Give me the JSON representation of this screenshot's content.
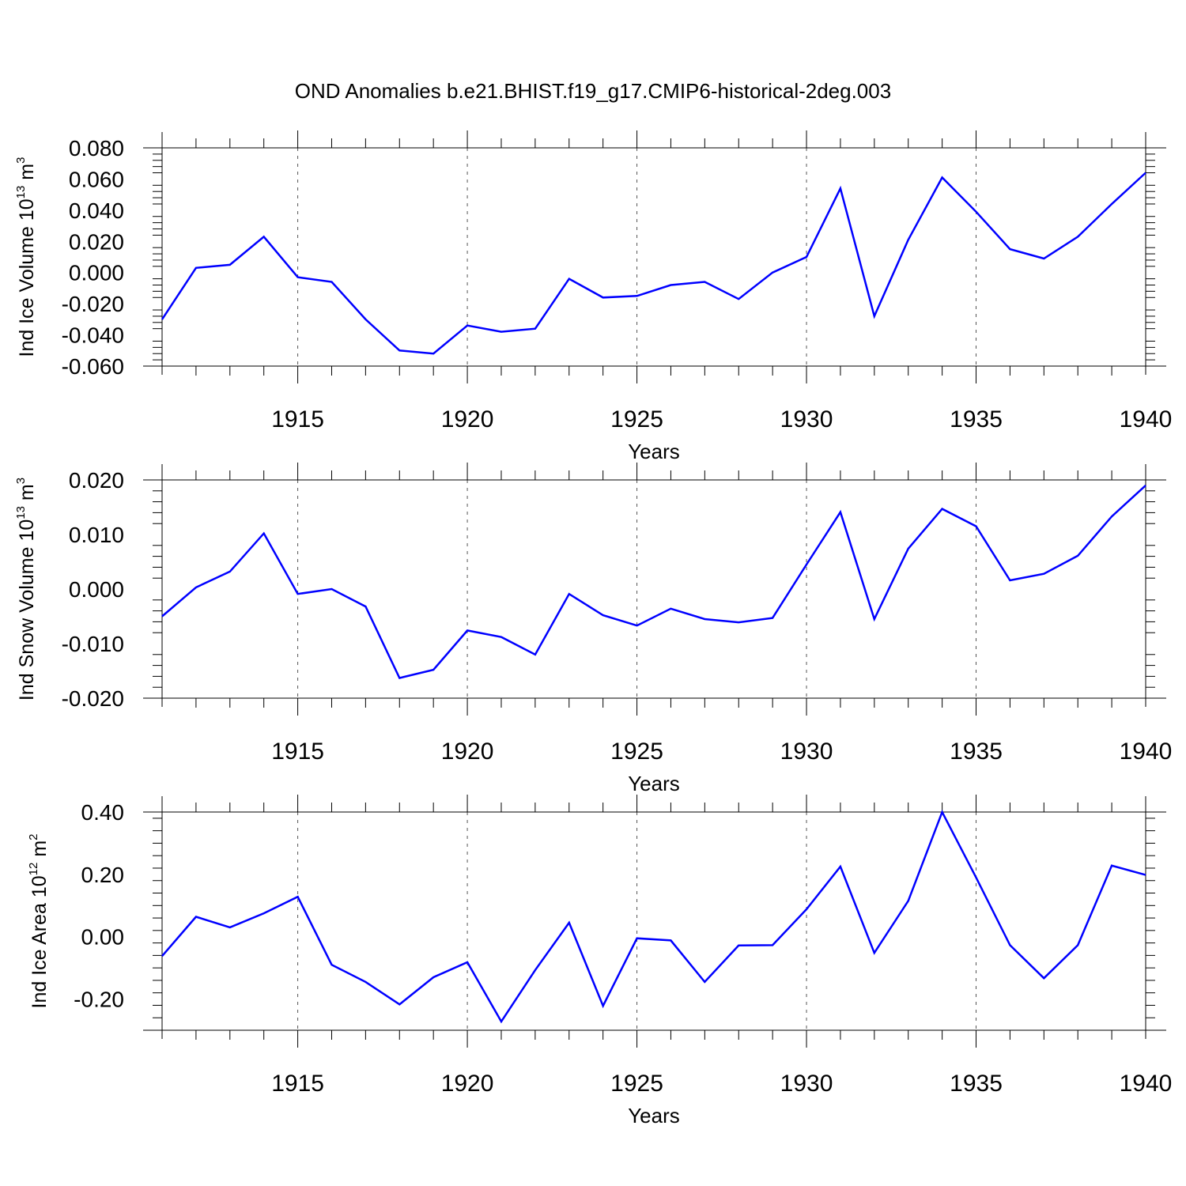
{
  "chart_data": {
    "title": "OND Anomalies b.e21.BHIST.f19_g17.CMIP6-historical-2deg.003",
    "panels": [
      {
        "type": "line",
        "ylabel_main": "Ind Ice Volume 10",
        "ylabel_sup": "13",
        "ylabel_unit": " m",
        "ylabel_unit_sup": "3",
        "xlabel": "Years",
        "color": "#0000ff",
        "xlim": [
          1911,
          1940
        ],
        "ylim": [
          -0.06,
          0.08
        ],
        "yticks": [
          -0.06,
          -0.04,
          -0.02,
          0.0,
          0.02,
          0.04,
          0.06,
          0.08
        ],
        "yticklabels": [
          "-0.060",
          "-0.040",
          "-0.020",
          "0.000",
          "0.020",
          "0.040",
          "0.060",
          "0.080"
        ],
        "xticks": [
          1915,
          1920,
          1925,
          1930,
          1935,
          1940
        ],
        "xticklabels": [
          "1915",
          "1920",
          "1925",
          "1930",
          "1935",
          "1940"
        ],
        "x": [
          1911,
          1912,
          1913,
          1914,
          1915,
          1916,
          1917,
          1918,
          1919,
          1920,
          1921,
          1922,
          1923,
          1924,
          1925,
          1926,
          1927,
          1928,
          1929,
          1930,
          1931,
          1932,
          1933,
          1934,
          1935,
          1936,
          1937,
          1938,
          1939,
          1940
        ],
        "values": [
          -0.03,
          0.003,
          0.005,
          0.023,
          -0.003,
          -0.006,
          -0.03,
          -0.05,
          -0.052,
          -0.034,
          -0.038,
          -0.036,
          -0.004,
          -0.016,
          -0.015,
          -0.008,
          -0.006,
          -0.017,
          0.0,
          0.01,
          0.054,
          -0.028,
          0.021,
          0.061,
          0.039,
          0.015,
          0.009,
          0.023,
          0.044,
          0.064
        ]
      },
      {
        "type": "line",
        "ylabel_main": "Ind Snow Volume 10",
        "ylabel_sup": "13",
        "ylabel_unit": " m",
        "ylabel_unit_sup": "3",
        "xlabel": "Years",
        "color": "#0000ff",
        "xlim": [
          1911,
          1940
        ],
        "ylim": [
          -0.02,
          0.02
        ],
        "yticks": [
          -0.02,
          -0.01,
          0.0,
          0.01,
          0.02
        ],
        "yticklabels": [
          "-0.020",
          "-0.010",
          "0.000",
          "0.010",
          "0.020"
        ],
        "xticks": [
          1915,
          1920,
          1925,
          1930,
          1935,
          1940
        ],
        "xticklabels": [
          "1915",
          "1920",
          "1925",
          "1930",
          "1935",
          "1940"
        ],
        "x": [
          1911,
          1912,
          1913,
          1914,
          1915,
          1916,
          1917,
          1918,
          1919,
          1920,
          1921,
          1922,
          1923,
          1924,
          1925,
          1926,
          1927,
          1928,
          1929,
          1930,
          1931,
          1932,
          1933,
          1934,
          1935,
          1936,
          1937,
          1938,
          1939,
          1940
        ],
        "values": [
          -0.005,
          0.0003,
          0.0032,
          0.0102,
          -0.0009,
          0.0,
          -0.0032,
          -0.0163,
          -0.0148,
          -0.0076,
          -0.0088,
          -0.012,
          -0.0009,
          -0.0048,
          -0.0067,
          -0.0036,
          -0.0055,
          -0.0061,
          -0.0053,
          0.0045,
          0.0141,
          -0.0055,
          0.0074,
          0.0147,
          0.0115,
          0.0016,
          0.0028,
          0.0061,
          0.0133,
          0.019
        ]
      },
      {
        "type": "line",
        "ylabel_main": "Ind Ice Area 10",
        "ylabel_sup": "12",
        "ylabel_unit": " m",
        "ylabel_unit_sup": "2",
        "xlabel": "Years",
        "color": "#0000ff",
        "xlim": [
          1911,
          1940
        ],
        "ylim": [
          -0.3,
          0.4
        ],
        "yticks": [
          -0.2,
          0.0,
          0.2,
          0.4
        ],
        "yticklabels": [
          "-0.20",
          "0.00",
          "0.20",
          "0.40"
        ],
        "xticks": [
          1915,
          1920,
          1925,
          1930,
          1935,
          1940
        ],
        "xticklabels": [
          "1915",
          "1920",
          "1925",
          "1930",
          "1935",
          "1940"
        ],
        "x": [
          1911,
          1912,
          1913,
          1914,
          1915,
          1916,
          1917,
          1918,
          1919,
          1920,
          1921,
          1922,
          1923,
          1924,
          1925,
          1926,
          1927,
          1928,
          1929,
          1930,
          1931,
          1932,
          1933,
          1934,
          1935,
          1936,
          1937,
          1938,
          1939,
          1940
        ],
        "values": [
          -0.062,
          0.064,
          0.03,
          0.075,
          0.128,
          -0.09,
          -0.145,
          -0.217,
          -0.13,
          -0.082,
          -0.272,
          -0.107,
          0.045,
          -0.222,
          -0.005,
          -0.012,
          -0.145,
          -0.028,
          -0.027,
          0.088,
          0.225,
          -0.052,
          0.115,
          0.4,
          0.19,
          -0.027,
          -0.133,
          -0.027,
          0.228,
          0.198
        ]
      }
    ]
  }
}
